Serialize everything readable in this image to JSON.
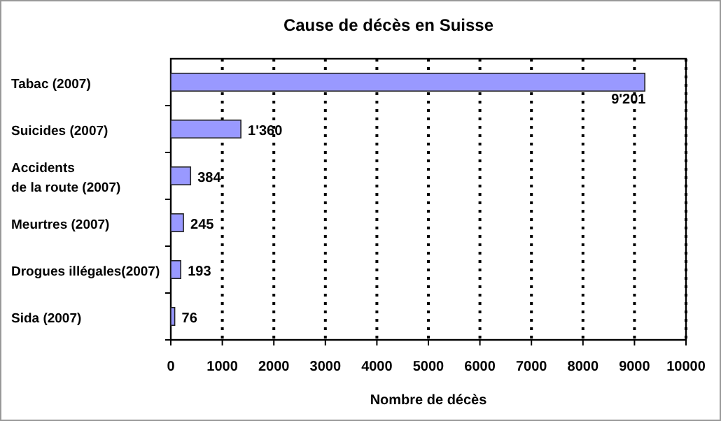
{
  "chart_data": {
    "type": "bar",
    "orientation": "horizontal",
    "title": "Cause de décès en Suisse",
    "xlabel": "Nombre de décès",
    "categories": [
      "Tabac (2007)",
      "Suicides (2007)",
      "Accidents\nde la route (2007)",
      "Meurtres (2007)",
      "Drogues illégales(2007)",
      "Sida (2007)"
    ],
    "values": [
      9201,
      1360,
      384,
      245,
      193,
      76
    ],
    "value_labels": [
      "9'201",
      "1'360",
      "384",
      "245",
      "193",
      "76"
    ],
    "color": "#9999ff",
    "xlim": [
      0,
      10000
    ],
    "xticks": [
      0,
      1000,
      2000,
      3000,
      4000,
      5000,
      6000,
      7000,
      8000,
      9000,
      10000
    ],
    "grid": "x"
  }
}
